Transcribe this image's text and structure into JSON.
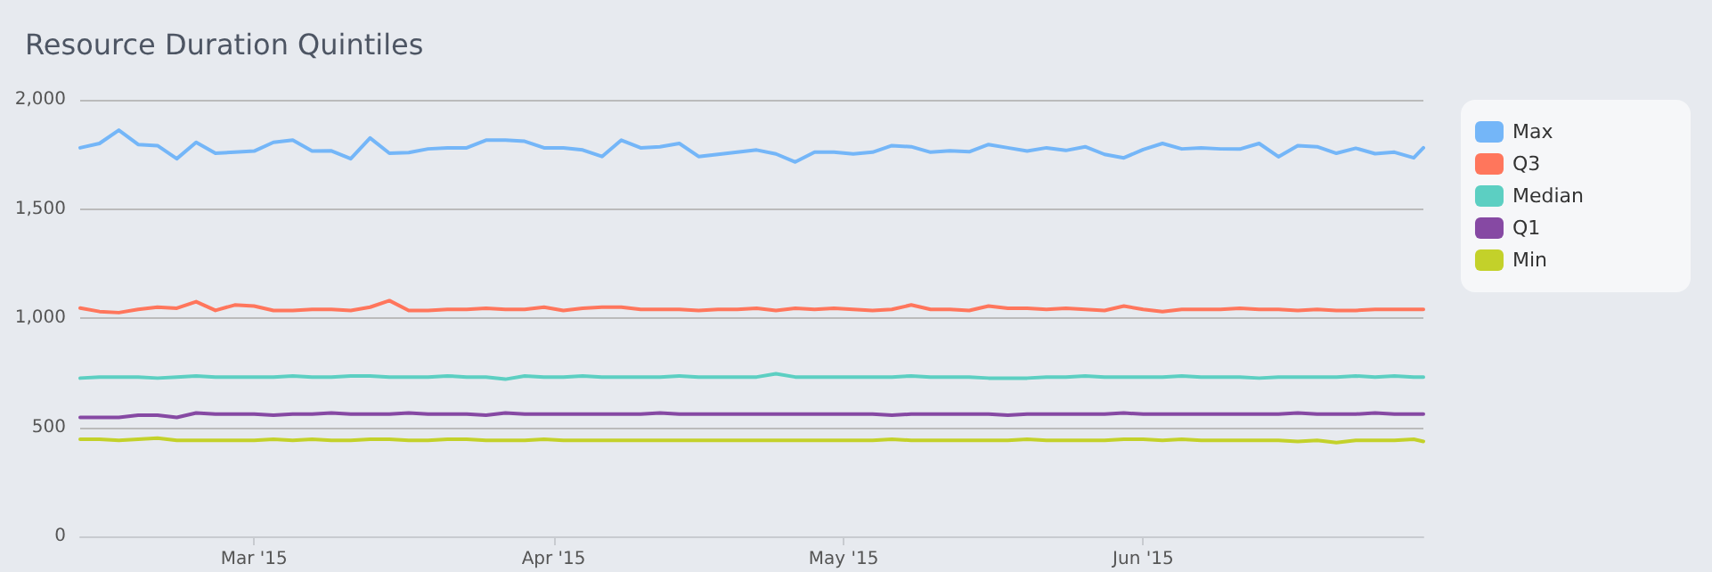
{
  "chart_data": {
    "type": "line",
    "title": "Resource Duration Quintiles",
    "x": [
      "2015-02-11",
      "2015-02-13",
      "2015-02-15",
      "2015-02-17",
      "2015-02-19",
      "2015-02-21",
      "2015-02-23",
      "2015-02-25",
      "2015-02-27",
      "2015-03-01",
      "2015-03-03",
      "2015-03-05",
      "2015-03-07",
      "2015-03-09",
      "2015-03-11",
      "2015-03-13",
      "2015-03-15",
      "2015-03-17",
      "2015-03-19",
      "2015-03-21",
      "2015-03-23",
      "2015-03-25",
      "2015-03-27",
      "2015-03-29",
      "2015-03-31",
      "2015-04-02",
      "2015-04-04",
      "2015-04-06",
      "2015-04-08",
      "2015-04-10",
      "2015-04-12",
      "2015-04-14",
      "2015-04-16",
      "2015-04-18",
      "2015-04-20",
      "2015-04-22",
      "2015-04-24",
      "2015-04-26",
      "2015-04-28",
      "2015-04-30",
      "2015-05-02",
      "2015-05-04",
      "2015-05-06",
      "2015-05-08",
      "2015-05-10",
      "2015-05-12",
      "2015-05-14",
      "2015-05-16",
      "2015-05-18",
      "2015-05-20",
      "2015-05-22",
      "2015-05-24",
      "2015-05-26",
      "2015-05-28",
      "2015-05-30",
      "2015-06-01",
      "2015-06-03",
      "2015-06-05",
      "2015-06-07",
      "2015-06-09",
      "2015-06-11",
      "2015-06-13",
      "2015-06-15",
      "2015-06-17",
      "2015-06-19",
      "2015-06-21",
      "2015-06-23",
      "2015-06-25",
      "2015-06-27",
      "2015-06-29",
      "2015-06-30"
    ],
    "series": [
      {
        "name": "Max",
        "color": "#74b6f8",
        "values": [
          1780,
          1800,
          1861,
          1795,
          1790,
          1730,
          1805,
          1755,
          1760,
          1765,
          1805,
          1815,
          1765,
          1766,
          1730,
          1825,
          1755,
          1758,
          1775,
          1780,
          1780,
          1815,
          1815,
          1810,
          1780,
          1780,
          1770,
          1740,
          1815,
          1780,
          1785,
          1800,
          1740,
          1750,
          1760,
          1770,
          1752,
          1715,
          1760,
          1760,
          1752,
          1760,
          1790,
          1785,
          1760,
          1766,
          1762,
          1795,
          1780,
          1765,
          1780,
          1768,
          1785,
          1750,
          1734,
          1772,
          1800,
          1775,
          1780,
          1775,
          1774,
          1800,
          1739,
          1790,
          1785,
          1755,
          1778,
          1753,
          1760,
          1734,
          1780
        ]
      },
      {
        "name": "Q3",
        "color": "#ff765c",
        "values": [
          1046,
          1030,
          1025,
          1040,
          1050,
          1045,
          1075,
          1035,
          1060,
          1055,
          1035,
          1035,
          1040,
          1040,
          1035,
          1050,
          1080,
          1035,
          1035,
          1040,
          1040,
          1045,
          1040,
          1040,
          1050,
          1035,
          1045,
          1050,
          1050,
          1040,
          1040,
          1040,
          1035,
          1040,
          1040,
          1045,
          1035,
          1045,
          1040,
          1045,
          1040,
          1035,
          1040,
          1060,
          1040,
          1040,
          1035,
          1055,
          1045,
          1045,
          1040,
          1045,
          1040,
          1035,
          1055,
          1040,
          1030,
          1040,
          1040,
          1040,
          1045,
          1040,
          1040,
          1035,
          1040,
          1035,
          1035,
          1040,
          1040,
          1040,
          1040
        ]
      },
      {
        "name": "Median",
        "color": "#5ccfc2",
        "values": [
          725,
          730,
          730,
          730,
          725,
          730,
          735,
          730,
          730,
          730,
          730,
          735,
          730,
          730,
          735,
          735,
          730,
          730,
          730,
          735,
          730,
          730,
          720,
          735,
          730,
          730,
          735,
          730,
          730,
          730,
          730,
          735,
          730,
          730,
          730,
          730,
          745,
          730,
          730,
          730,
          730,
          730,
          730,
          735,
          730,
          730,
          730,
          725,
          725,
          725,
          730,
          730,
          735,
          730,
          730,
          730,
          730,
          735,
          730,
          730,
          730,
          725,
          730,
          730,
          730,
          730,
          735,
          730,
          735,
          730,
          730
        ]
      },
      {
        "name": "Q1",
        "color": "#8649a3",
        "values": [
          545,
          545,
          545,
          555,
          555,
          545,
          565,
          560,
          560,
          560,
          555,
          560,
          560,
          565,
          560,
          560,
          560,
          565,
          560,
          560,
          560,
          555,
          565,
          560,
          560,
          560,
          560,
          560,
          560,
          560,
          565,
          560,
          560,
          560,
          560,
          560,
          560,
          560,
          560,
          560,
          560,
          560,
          555,
          560,
          560,
          560,
          560,
          560,
          555,
          560,
          560,
          560,
          560,
          560,
          565,
          560,
          560,
          560,
          560,
          560,
          560,
          560,
          560,
          565,
          560,
          560,
          560,
          565,
          560,
          560,
          560
        ]
      },
      {
        "name": "Min",
        "color": "#c3d12a",
        "values": [
          445,
          445,
          440,
          445,
          450,
          440,
          440,
          440,
          440,
          440,
          445,
          440,
          445,
          440,
          440,
          445,
          445,
          440,
          440,
          445,
          445,
          440,
          440,
          440,
          445,
          440,
          440,
          440,
          440,
          440,
          440,
          440,
          440,
          440,
          440,
          440,
          440,
          440,
          440,
          440,
          440,
          440,
          445,
          440,
          440,
          440,
          440,
          440,
          440,
          445,
          440,
          440,
          440,
          440,
          445,
          445,
          440,
          445,
          440,
          440,
          440,
          440,
          440,
          435,
          440,
          430,
          440,
          440,
          440,
          445,
          435
        ]
      }
    ],
    "ylim": [
      0,
      2000
    ],
    "yticks": [
      {
        "value": 0,
        "label": "0"
      },
      {
        "value": 500,
        "label": "500"
      },
      {
        "value": 1000,
        "label": "1,000"
      },
      {
        "value": 1500,
        "label": "1,500"
      },
      {
        "value": 2000,
        "label": "2,000"
      }
    ],
    "xlim": [
      "2015-02-11",
      "2015-06-30"
    ],
    "xticks": [
      {
        "value": "2015-03-01",
        "label": "Mar '15"
      },
      {
        "value": "2015-04-01",
        "label": "Apr '15"
      },
      {
        "value": "2015-05-01",
        "label": "May '15"
      },
      {
        "value": "2015-06-01",
        "label": "Jun '15"
      }
    ],
    "grid": "y",
    "legend": "top right",
    "marker": "none",
    "line_style": "solid"
  }
}
